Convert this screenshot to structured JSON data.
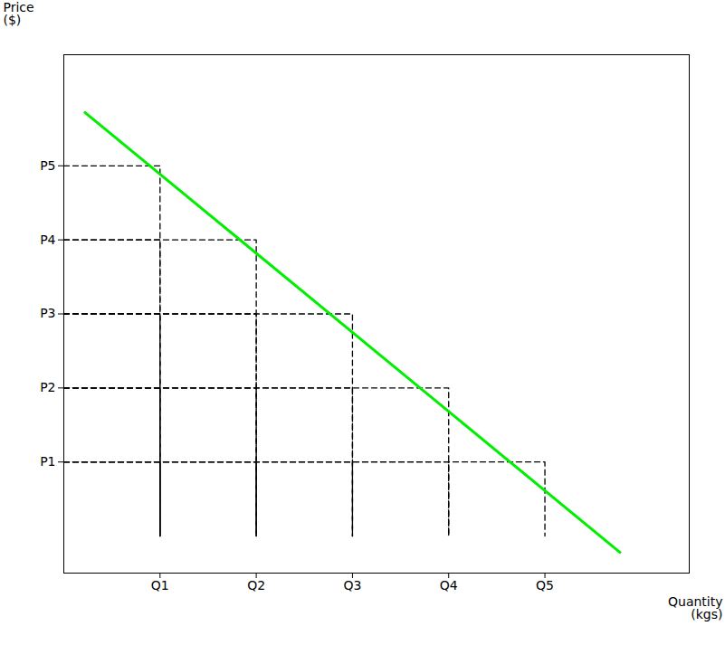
{
  "chart_data": {
    "type": "line",
    "xlabel": "Quantity\n(kgs)",
    "ylabel": "Price\n($)",
    "xlim": [
      0,
      6.5
    ],
    "ylim": [
      -0.5,
      6.5
    ],
    "xticks": [
      {
        "value": 1,
        "label": "Q1"
      },
      {
        "value": 2,
        "label": "Q2"
      },
      {
        "value": 3,
        "label": "Q3"
      },
      {
        "value": 4,
        "label": "Q4"
      },
      {
        "value": 5,
        "label": "Q5"
      }
    ],
    "yticks": [
      {
        "value": 1,
        "label": "P1"
      },
      {
        "value": 2,
        "label": "P2"
      },
      {
        "value": 3,
        "label": "P3"
      },
      {
        "value": 4,
        "label": "P4"
      },
      {
        "value": 5,
        "label": "P5"
      }
    ],
    "grid": false,
    "series": [
      {
        "x": [
          0,
          1,
          1
        ],
        "values": [
          5,
          5,
          0
        ],
        "color": "#000000",
        "line_style": "dashed"
      },
      {
        "x": [
          0,
          1,
          1
        ],
        "values": [
          4,
          4,
          0
        ],
        "color": "#000000",
        "line_style": "dashed"
      },
      {
        "x": [
          0,
          1,
          1
        ],
        "values": [
          3,
          3,
          0
        ],
        "color": "#000000",
        "line_style": "dashed"
      },
      {
        "x": [
          0,
          1,
          1
        ],
        "values": [
          2,
          2,
          0
        ],
        "color": "#000000",
        "line_style": "dashed"
      },
      {
        "x": [
          0,
          1,
          1
        ],
        "values": [
          1,
          1,
          0
        ],
        "color": "#000000",
        "line_style": "dashed"
      },
      {
        "x": [
          0,
          2,
          2
        ],
        "values": [
          4,
          4,
          0
        ],
        "color": "#000000",
        "line_style": "dashed"
      },
      {
        "x": [
          0,
          2,
          2
        ],
        "values": [
          3,
          3,
          0
        ],
        "color": "#000000",
        "line_style": "dashed"
      },
      {
        "x": [
          0,
          2,
          2
        ],
        "values": [
          2,
          2,
          0
        ],
        "color": "#000000",
        "line_style": "dashed"
      },
      {
        "x": [
          0,
          2,
          2
        ],
        "values": [
          1,
          1,
          0
        ],
        "color": "#000000",
        "line_style": "dashed"
      },
      {
        "x": [
          0,
          3,
          3
        ],
        "values": [
          3,
          3,
          0
        ],
        "color": "#000000",
        "line_style": "dashed"
      },
      {
        "x": [
          0,
          3,
          3
        ],
        "values": [
          2,
          2,
          0
        ],
        "color": "#000000",
        "line_style": "dashed"
      },
      {
        "x": [
          0,
          3,
          3
        ],
        "values": [
          1,
          1,
          0
        ],
        "color": "#000000",
        "line_style": "dashed"
      },
      {
        "x": [
          0,
          4,
          4
        ],
        "values": [
          2,
          2,
          0
        ],
        "color": "#000000",
        "line_style": "dashed"
      },
      {
        "x": [
          0,
          4,
          4
        ],
        "values": [
          1,
          1,
          0
        ],
        "color": "#000000",
        "line_style": "dashed"
      },
      {
        "x": [
          0,
          5,
          5
        ],
        "values": [
          1,
          1,
          0
        ],
        "color": "#000000",
        "line_style": "dashed"
      },
      {
        "x": [
          0.22,
          5.78
        ],
        "values": [
          5.72,
          -0.22
        ],
        "color": "#00ee00",
        "line_style": "solid"
      }
    ]
  }
}
